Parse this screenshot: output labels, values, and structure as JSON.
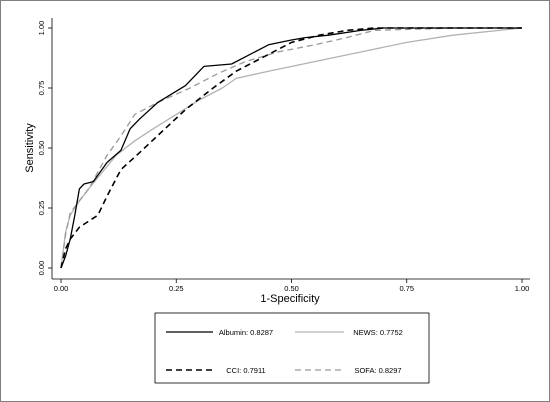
{
  "chart_data": {
    "type": "line",
    "xlabel": "1-Specificity",
    "ylabel": "Sensitivity",
    "xlim": [
      0,
      1
    ],
    "ylim": [
      0,
      1
    ],
    "xticks": [
      "0.00",
      "0.25",
      "0.50",
      "0.75",
      "1.00"
    ],
    "yticks": [
      "0.00",
      "0.25",
      "0.50",
      "0.75",
      "1.00"
    ],
    "grid": false,
    "legend_position": "bottom",
    "series": [
      {
        "name": "Albumin: 0.8287",
        "color": "#000000",
        "style": "solid",
        "x": [
          0.0,
          0.01,
          0.02,
          0.03,
          0.04,
          0.05,
          0.07,
          0.1,
          0.13,
          0.15,
          0.17,
          0.21,
          0.27,
          0.31,
          0.37,
          0.4,
          0.45,
          0.5,
          0.53,
          0.58,
          0.65,
          0.7,
          1.0
        ],
        "y": [
          0.0,
          0.05,
          0.12,
          0.22,
          0.33,
          0.35,
          0.36,
          0.44,
          0.49,
          0.58,
          0.62,
          0.69,
          0.76,
          0.84,
          0.85,
          0.88,
          0.93,
          0.95,
          0.96,
          0.97,
          0.99,
          1.0,
          1.0
        ]
      },
      {
        "name": "NEWS: 0.7752",
        "color": "#b3b3b3",
        "style": "solid",
        "x": [
          0.0,
          0.01,
          0.02,
          0.04,
          0.06,
          0.09,
          0.12,
          0.16,
          0.2,
          0.25,
          0.3,
          0.35,
          0.38,
          0.45,
          0.55,
          0.65,
          0.75,
          0.85,
          1.0
        ],
        "y": [
          0.0,
          0.15,
          0.22,
          0.28,
          0.33,
          0.4,
          0.47,
          0.53,
          0.58,
          0.64,
          0.7,
          0.75,
          0.79,
          0.82,
          0.86,
          0.9,
          0.94,
          0.97,
          1.0
        ]
      },
      {
        "name": "CCI: 0.7911",
        "color": "#000000",
        "style": "dashed",
        "x": [
          0.0,
          0.01,
          0.02,
          0.04,
          0.08,
          0.1,
          0.13,
          0.17,
          0.22,
          0.27,
          0.33,
          0.38,
          0.45,
          0.5,
          0.56,
          0.62,
          0.68,
          0.8,
          1.0
        ],
        "y": [
          0.0,
          0.08,
          0.12,
          0.17,
          0.22,
          0.3,
          0.41,
          0.48,
          0.57,
          0.66,
          0.75,
          0.82,
          0.89,
          0.94,
          0.97,
          0.99,
          1.0,
          1.0,
          1.0
        ]
      },
      {
        "name": "SOFA: 0.8297",
        "color": "#999999",
        "style": "dashed",
        "x": [
          0.0,
          0.01,
          0.02,
          0.04,
          0.06,
          0.1,
          0.13,
          0.16,
          0.21,
          0.28,
          0.34,
          0.4,
          0.47,
          0.55,
          0.62,
          0.68,
          0.85,
          1.0
        ],
        "y": [
          0.0,
          0.14,
          0.23,
          0.28,
          0.33,
          0.47,
          0.55,
          0.64,
          0.69,
          0.75,
          0.81,
          0.86,
          0.9,
          0.93,
          0.96,
          0.99,
          1.0,
          1.0
        ]
      }
    ]
  }
}
